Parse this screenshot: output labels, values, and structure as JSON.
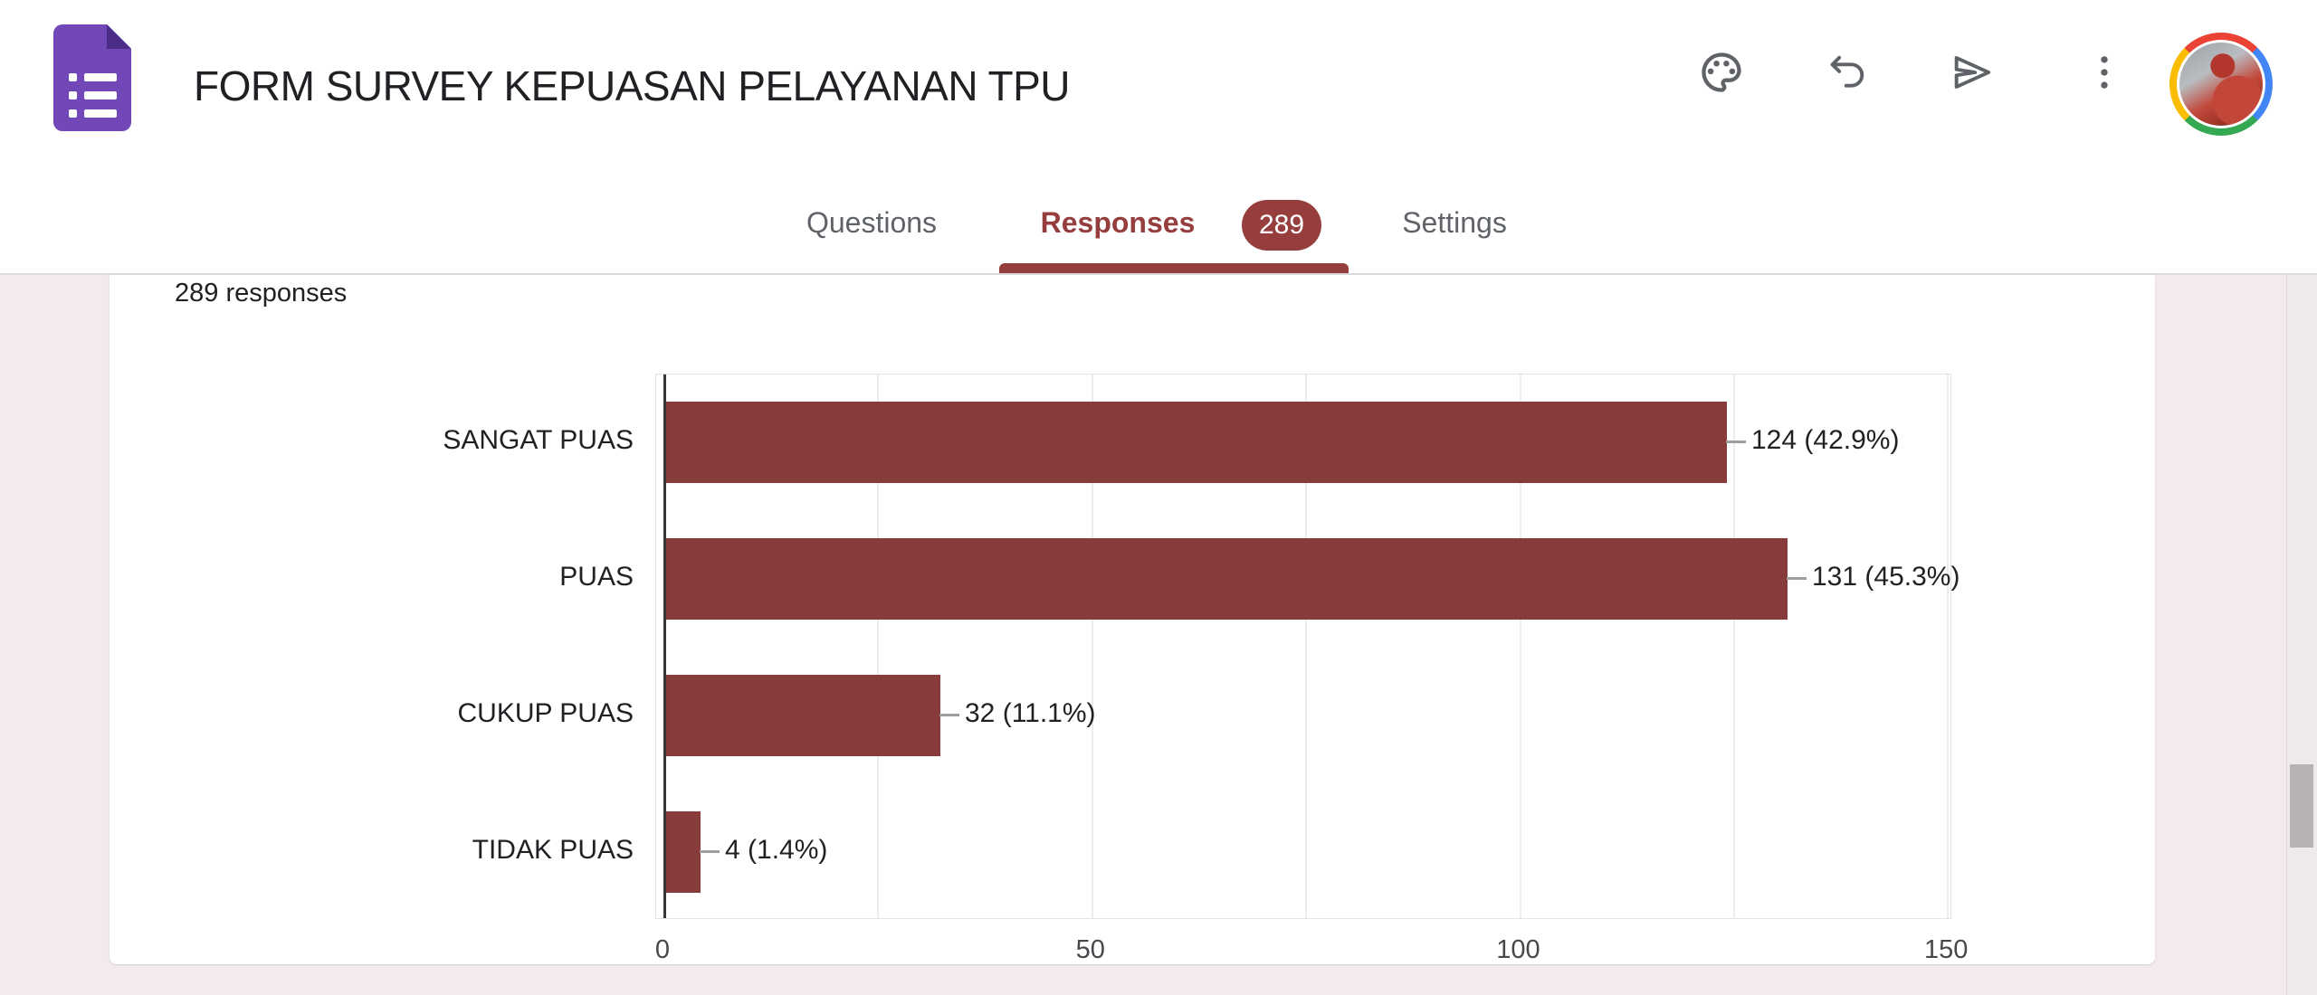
{
  "header": {
    "title": "FORM SURVEY KEPUASAN PELAYANAN TPU",
    "actions": [
      {
        "name": "customize-theme",
        "icon": "palette-icon"
      },
      {
        "name": "undo",
        "icon": "undo-icon"
      },
      {
        "name": "send",
        "icon": "send-icon"
      },
      {
        "name": "more-options",
        "icon": "more-vert-icon"
      },
      {
        "name": "account",
        "icon": "user-avatar"
      }
    ]
  },
  "tabs": {
    "items": [
      {
        "label": "Questions",
        "active": false
      },
      {
        "label": "Responses",
        "active": true,
        "badge": "289"
      },
      {
        "label": "Settings",
        "active": false
      }
    ]
  },
  "summary": {
    "responses_text": "289 responses",
    "responses_count": 289
  },
  "chart_data": {
    "type": "bar",
    "orientation": "horizontal",
    "categories": [
      "SANGAT PUAS",
      "PUAS",
      "CUKUP PUAS",
      "TIDAK PUAS"
    ],
    "values": [
      124,
      131,
      32,
      4
    ],
    "value_labels": [
      "124 (42.9%)",
      "131 (45.3%)",
      "32 (11.1%)",
      "4 (1.4%)"
    ],
    "title": "",
    "xlabel": "",
    "ylabel": "",
    "xlim": [
      0,
      150
    ],
    "xticks": [
      0,
      50,
      100,
      150
    ],
    "grid_step": 25,
    "grid": true,
    "legend": "none",
    "bar_color": "#883b3b"
  },
  "colors": {
    "theme_maroon": "#963e3e",
    "bar_maroon": "#883b3b",
    "page_background": "#f3eaec",
    "header_background": "#ffffff",
    "icon_gray": "#5f6368",
    "text_dark": "#202124",
    "forms_icon_purple": "#7248b9"
  }
}
